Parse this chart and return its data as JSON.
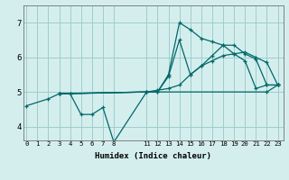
{
  "xlabel": "Humidex (Indice chaleur)",
  "background_color": "#d4eeee",
  "grid_color": "#a0cccc",
  "line_color": "#006868",
  "xticks": [
    0,
    1,
    2,
    3,
    4,
    5,
    6,
    7,
    8,
    11,
    12,
    13,
    14,
    15,
    16,
    17,
    18,
    19,
    20,
    21,
    22,
    23
  ],
  "yticks": [
    4,
    5,
    6,
    7
  ],
  "ylim": [
    3.6,
    7.5
  ],
  "xlim": [
    -0.3,
    23.5
  ],
  "lines": [
    {
      "x": [
        0,
        2,
        3,
        4,
        5,
        6,
        7,
        8,
        11,
        12,
        13,
        14,
        15,
        16,
        17,
        18,
        19,
        20,
        21,
        22,
        23
      ],
      "y": [
        4.6,
        4.8,
        4.95,
        4.95,
        4.35,
        4.35,
        4.55,
        3.55,
        5.0,
        5.0,
        5.5,
        7.0,
        6.8,
        6.55,
        6.45,
        6.35,
        6.1,
        5.9,
        5.1,
        5.2,
        5.2
      ]
    },
    {
      "x": [
        3,
        4,
        11,
        12,
        13,
        14,
        15,
        16,
        17,
        18,
        19,
        20,
        21,
        22,
        23
      ],
      "y": [
        4.95,
        4.95,
        5.0,
        5.0,
        5.45,
        6.5,
        5.5,
        5.75,
        6.05,
        6.35,
        6.35,
        6.1,
        5.95,
        5.2,
        5.2
      ]
    },
    {
      "x": [
        3,
        11,
        12,
        13,
        14,
        15,
        16,
        17,
        18,
        19,
        20,
        21,
        22,
        23
      ],
      "y": [
        4.95,
        5.0,
        5.05,
        5.1,
        5.2,
        5.5,
        5.75,
        5.9,
        6.05,
        6.1,
        6.15,
        6.0,
        5.85,
        5.2
      ]
    },
    {
      "x": [
        3,
        11,
        22,
        23
      ],
      "y": [
        4.95,
        5.0,
        5.0,
        5.2
      ]
    }
  ]
}
